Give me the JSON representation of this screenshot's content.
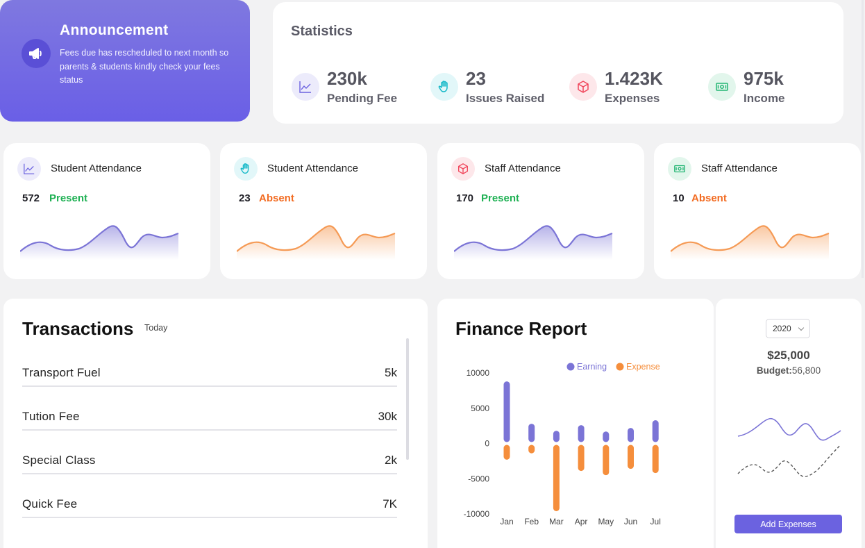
{
  "announcement": {
    "title": "Announcement",
    "text": "Fees due has rescheduled to next month so parents & students kindly check your fees status",
    "icon": "megaphone-icon"
  },
  "statistics": {
    "title": "Statistics",
    "items": [
      {
        "value": "230k",
        "label": "Pending Fee",
        "icon": "trend-icon",
        "color": "#6b62e0",
        "bg": "#ecebfb"
      },
      {
        "value": "23",
        "label": "Issues Raised",
        "icon": "hand-icon",
        "color": "#14b8c8",
        "bg": "#e2f7f9"
      },
      {
        "value": "1.423K",
        "label": "Expenses",
        "icon": "box-icon",
        "color": "#f0445a",
        "bg": "#fde7ea"
      },
      {
        "value": "975k",
        "label": "Income",
        "icon": "cash-icon",
        "color": "#22b573",
        "bg": "#e2f6ec"
      }
    ]
  },
  "attendance": [
    {
      "title": "Student Attendance",
      "count": "572",
      "status": "Present",
      "status_color": "#1fb154",
      "line_color": "#7b74d6",
      "icon": "trend-icon"
    },
    {
      "title": "Student Attendance",
      "count": "23",
      "status": "Absent",
      "status_color": "#f26b21",
      "line_color": "#f59a55",
      "icon": "hand-icon"
    },
    {
      "title": "Staff Attendance",
      "count": "170",
      "status": "Present",
      "status_color": "#1fb154",
      "line_color": "#7b74d6",
      "icon": "box-icon"
    },
    {
      "title": "Staff Attendance",
      "count": "10",
      "status": "Absent",
      "status_color": "#f26b21",
      "line_color": "#f59a55",
      "icon": "cash-icon"
    }
  ],
  "transactions": {
    "title": "Transactions",
    "period": "Today",
    "rows": [
      {
        "name": "Transport Fuel",
        "amount": "5k"
      },
      {
        "name": "Tution Fee",
        "amount": "30k"
      },
      {
        "name": "Special Class",
        "amount": "2k"
      },
      {
        "name": "Quick Fee",
        "amount": "7K"
      }
    ]
  },
  "finance": {
    "title": "Finance Report",
    "chart_data": {
      "type": "bar",
      "categories": [
        "Jan",
        "Feb",
        "Mar",
        "Apr",
        "May",
        "Jun",
        "Jul"
      ],
      "series": [
        {
          "name": "Earning",
          "color": "#7b74d6",
          "values": [
            8800,
            2800,
            1800,
            2600,
            1700,
            2200,
            3300
          ]
        },
        {
          "name": "Expense",
          "color": "#f58e3c",
          "values": [
            -2300,
            -1400,
            -9600,
            -3900,
            -4500,
            -3600,
            -4200
          ]
        }
      ],
      "ylim": [
        -10000,
        10000
      ],
      "yticks": [
        10000,
        5000,
        0,
        -5000,
        -10000
      ],
      "legend": "top-right"
    }
  },
  "budget": {
    "year": "2020",
    "amount": "$25,000",
    "budget_label": "Budget:",
    "budget_value": "56,800",
    "button": "Add Expenses"
  }
}
